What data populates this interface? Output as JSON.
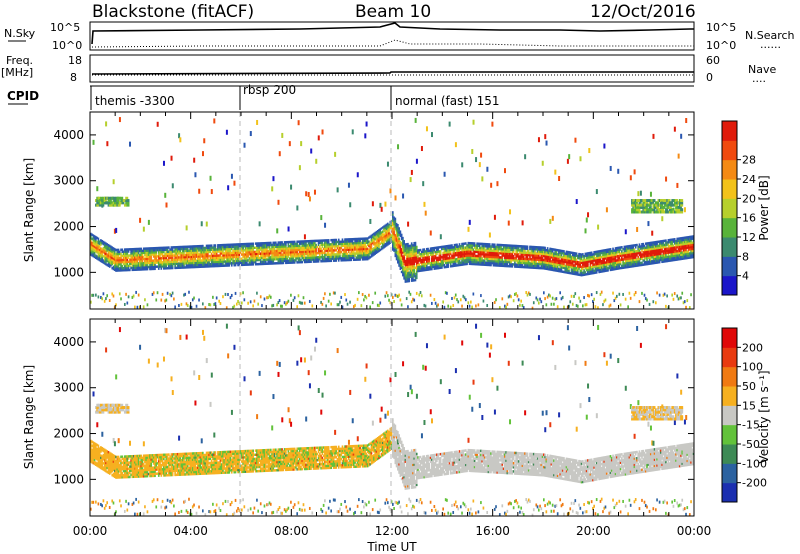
{
  "header": {
    "station": "Blackstone (fitACF)",
    "beam": "Beam 10",
    "date": "12/Oct/2016"
  },
  "summary_panels": {
    "nsky": {
      "left_label": "N.Sky",
      "left_ticks": [
        "10^5",
        "10^0"
      ],
      "right_label": "N.Search",
      "right_ticks": [
        "10^5",
        "10^0"
      ],
      "right_legend_style": "......"
    },
    "freq": {
      "left_label": "Freq.",
      "left_unit": "[MHz]",
      "left_ticks": [
        "18",
        "8"
      ],
      "right_label": "Nave",
      "right_ticks": [
        "60",
        "0"
      ],
      "right_legend_style": "...."
    },
    "cpid": {
      "label": "CPID",
      "segments": [
        {
          "name": "themis -3300",
          "start_hour": 0,
          "end_hour": 6
        },
        {
          "name": "rbsp 200",
          "start_hour": 6,
          "end_hour": 12
        },
        {
          "name": "normal (fast) 151",
          "start_hour": 12,
          "end_hour": 24
        }
      ]
    }
  },
  "chart_data": [
    {
      "type": "heatmap",
      "title": "",
      "ylabel": "Slant Range [km]",
      "xlabel": "Time UT",
      "xlim": [
        0,
        24
      ],
      "ylim": [
        200,
        4500
      ],
      "y_ticks": [
        "1000",
        "2000",
        "3000",
        "4000"
      ],
      "x_ticks": [
        "00:00",
        "04:00",
        "08:00",
        "12:00",
        "16:00",
        "20:00",
        "00:00"
      ],
      "colorbar": {
        "label": "Power [dB]",
        "ticks": [
          "4",
          "8",
          "12",
          "16",
          "20",
          "24",
          "28"
        ],
        "colors": [
          "#1b16c9",
          "#2a57b0",
          "#3b8a6f",
          "#58b33a",
          "#b6cf2c",
          "#f2c21a",
          "#f48a14",
          "#f04a0e",
          "#e01b0b"
        ]
      },
      "main_band_center_km": [
        {
          "hour": 0.0,
          "km": 1600
        },
        {
          "hour": 1.0,
          "km": 1250
        },
        {
          "hour": 3.0,
          "km": 1300
        },
        {
          "hour": 5.0,
          "km": 1350
        },
        {
          "hour": 7.0,
          "km": 1400
        },
        {
          "hour": 9.0,
          "km": 1450
        },
        {
          "hour": 11.0,
          "km": 1500
        },
        {
          "hour": 12.0,
          "km": 1900
        },
        {
          "hour": 12.5,
          "km": 1200
        },
        {
          "hour": 15.0,
          "km": 1400
        },
        {
          "hour": 18.0,
          "km": 1300
        },
        {
          "hour": 19.5,
          "km": 1150
        },
        {
          "hour": 21.0,
          "km": 1300
        },
        {
          "hour": 24.0,
          "km": 1550
        }
      ]
    },
    {
      "type": "heatmap",
      "title": "",
      "ylabel": "Slant Range [km]",
      "xlabel": "Time UT",
      "xlim": [
        0,
        24
      ],
      "ylim": [
        200,
        4500
      ],
      "y_ticks": [
        "1000",
        "2000",
        "3000",
        "4000"
      ],
      "x_ticks": [
        "00:00",
        "04:00",
        "08:00",
        "12:00",
        "16:00",
        "20:00",
        "00:00"
      ],
      "colorbar": {
        "label": "Velocity [m s⁻¹]",
        "ticks": [
          "200",
          "100",
          "50",
          "15",
          "-15",
          "-50",
          "-100",
          "-200"
        ],
        "colors": [
          "#1b2fb0",
          "#2b62a0",
          "#3d8a55",
          "#62c23a",
          "#c8c8c4",
          "#f6b020",
          "#f07a12",
          "#e83a10",
          "#e00808"
        ]
      }
    }
  ]
}
